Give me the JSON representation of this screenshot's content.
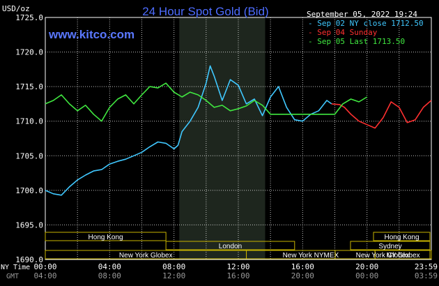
{
  "header": {
    "currency": "USD/oz",
    "title": "24 Hour Spot Gold (Bid)",
    "website": "www.kitco.com",
    "timestamp": "September 05, 2022 19:24"
  },
  "legend": [
    {
      "label": "- Sep 02 NY close 1712.50",
      "color": "#40c8ff"
    },
    {
      "label": "- Sep 04 Sunday",
      "color": "#ff3030"
    },
    {
      "label": "- Sep 05 Last 1713.50",
      "color": "#40e840"
    }
  ],
  "colors": {
    "background": "#000000",
    "grid": "#ffffff",
    "title": "#4d6cff",
    "website": "#5a78ff",
    "market_box_border": "#c8b400",
    "nymex_shade": "#1e261e"
  },
  "markets": [
    {
      "label": "Hong Kong",
      "start_hour": 0,
      "end_hour": 7.5,
      "row": 0
    },
    {
      "label": "London",
      "start_hour": 7.5,
      "end_hour": 15.5,
      "row": 1
    },
    {
      "label": "New York Globex",
      "start_hour": 0,
      "end_hour": 12.5,
      "row": 2
    },
    {
      "label": "New York NYMEX",
      "start_hour": 12.5,
      "end_hour": 20.5,
      "row": 2
    },
    {
      "label": "NY Globex",
      "start_hour": 20.5,
      "end_hour": 24,
      "row": 2
    },
    {
      "label": "Hong Kong",
      "start_hour": 30,
      "end_hour": 36,
      "row": 0
    },
    {
      "label": "Sydney",
      "start_hour": 28,
      "end_hour": 36,
      "row": 1
    },
    {
      "label": "New York Globex",
      "start_hour": 25,
      "end_hour": 36,
      "row": 2
    }
  ],
  "x_axis_rows": [
    {
      "label": "NY Time",
      "ticks": [
        "00:00",
        "04:00",
        "08:00",
        "12:00",
        "16:00",
        "20:00",
        "23:59"
      ],
      "color": "#ffffff"
    },
    {
      "label": "GMT",
      "ticks": [
        "04:00",
        "08:00",
        "12:00",
        "16:00",
        "20:00",
        "00:00",
        "03:59"
      ],
      "color": "#999999"
    }
  ],
  "chart_data": {
    "type": "line",
    "title": "24 Hour Spot Gold (Bid)",
    "ylabel": "USD/oz",
    "ylim": [
      1690,
      1725
    ],
    "yticks": [
      "1725.0",
      "1720.0",
      "1715.0",
      "1710.0",
      "1705.0",
      "1700.0",
      "1695.0",
      "1690.0"
    ],
    "xlim_hours": [
      0,
      24
    ],
    "nymex_session_hours": [
      8.33,
      13.67
    ],
    "grid": true,
    "series": [
      {
        "name": "Sep 02 NY close 1712.50",
        "color": "#40c8ff",
        "x": [
          0,
          0.5,
          1,
          1.5,
          2,
          2.5,
          3,
          3.5,
          4,
          4.5,
          5,
          5.5,
          6,
          6.5,
          7,
          7.5,
          8,
          8.25,
          8.5,
          9,
          9.5,
          10,
          10.25,
          10.5,
          11,
          11.5,
          12,
          12.5,
          13,
          13.5,
          14,
          14.5,
          15,
          15.5,
          16,
          16.5,
          17,
          17.5,
          17.8
        ],
        "y": [
          1700.0,
          1699.5,
          1699.3,
          1700.5,
          1701.5,
          1702.2,
          1702.8,
          1703.0,
          1703.8,
          1704.2,
          1704.5,
          1705.0,
          1705.5,
          1706.3,
          1707.0,
          1706.8,
          1706.0,
          1706.5,
          1708.5,
          1710.0,
          1712.0,
          1715.5,
          1718.0,
          1716.5,
          1713.0,
          1716.0,
          1715.2,
          1712.5,
          1713.2,
          1710.8,
          1713.5,
          1715.0,
          1712.0,
          1710.2,
          1710.0,
          1711.0,
          1711.5,
          1713.0,
          1712.5
        ]
      },
      {
        "name": "Sep 04 Sunday",
        "color": "#ff3030",
        "x": [
          17.8,
          18.3,
          18.6,
          19,
          19.5,
          20,
          20.5,
          21,
          21.5,
          22,
          22.5,
          23,
          23.5,
          23.99
        ],
        "y": [
          1712.5,
          1712.4,
          1712.0,
          1711.0,
          1710.0,
          1709.5,
          1709.0,
          1710.5,
          1712.8,
          1712.0,
          1709.8,
          1710.2,
          1712.0,
          1713.0
        ]
      },
      {
        "name": "Sep 05 Last 1713.50",
        "color": "#40e840",
        "x": [
          0,
          0.5,
          1,
          1.5,
          2,
          2.5,
          3,
          3.5,
          4,
          4.5,
          5,
          5.5,
          6,
          6.5,
          7,
          7.5,
          8,
          8.5,
          9,
          9.5,
          10,
          10.5,
          11,
          11.5,
          12,
          12.5,
          13,
          13.5,
          14,
          14.5,
          15,
          15.5,
          16,
          16.5,
          17,
          17.5,
          18,
          18.5,
          19,
          19.5,
          20
        ],
        "y": [
          1712.5,
          1713.0,
          1713.8,
          1712.5,
          1711.5,
          1712.3,
          1711.0,
          1710.0,
          1712.0,
          1713.2,
          1713.8,
          1712.5,
          1713.8,
          1715.0,
          1714.8,
          1715.5,
          1714.2,
          1713.5,
          1714.2,
          1713.8,
          1713.0,
          1712.0,
          1712.3,
          1711.5,
          1711.8,
          1712.2,
          1713.0,
          1712.3,
          1711.0,
          1711.0,
          1711.0,
          1711.0,
          1711.0,
          1711.0,
          1711.0,
          1711.0,
          1711.0,
          1712.5,
          1713.2,
          1712.8,
          1713.5
        ]
      }
    ]
  }
}
